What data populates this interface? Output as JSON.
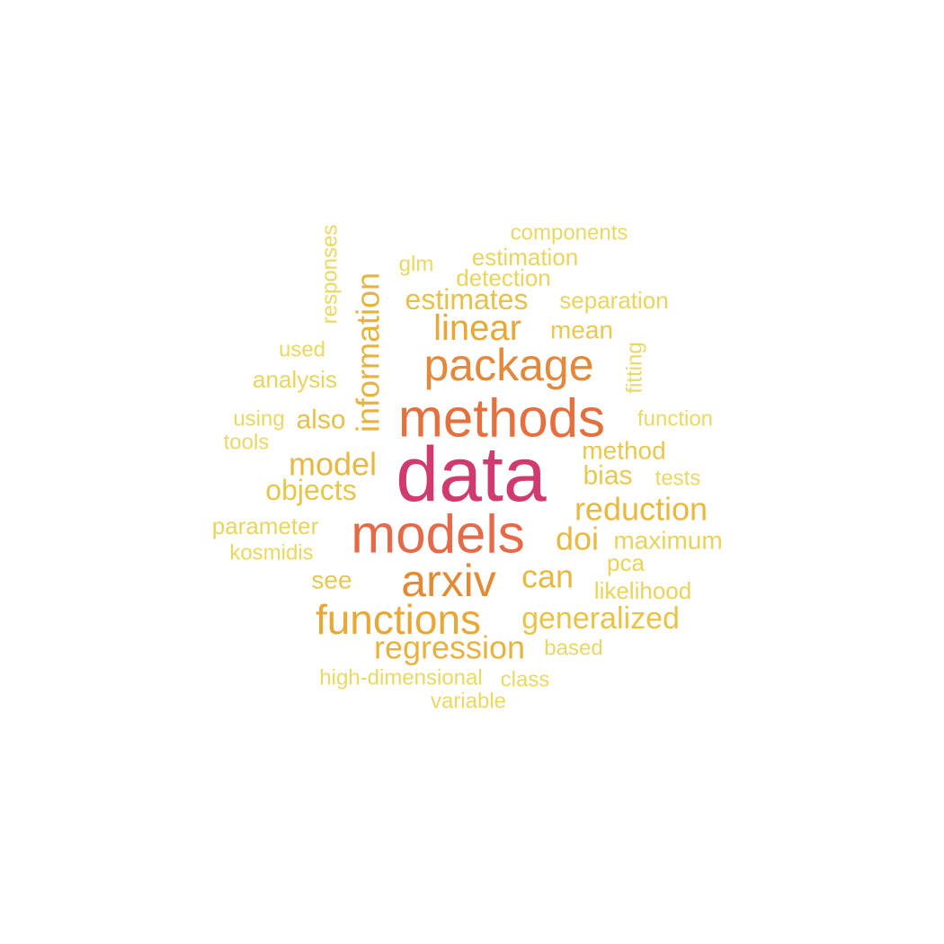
{
  "word_cloud": {
    "words": [
      {
        "text": "data",
        "color": "#d03a6e"
      },
      {
        "text": "methods",
        "color": "#e5703e"
      },
      {
        "text": "models",
        "color": "#e56a4a"
      },
      {
        "text": "package",
        "color": "#e5883a"
      },
      {
        "text": "arxiv",
        "color": "#e58a34"
      },
      {
        "text": "functions",
        "color": "#e8a736"
      },
      {
        "text": "linear",
        "color": "#e8a736"
      },
      {
        "text": "information",
        "color": "#e8b23e"
      },
      {
        "text": "regression",
        "color": "#e8b23e"
      },
      {
        "text": "can",
        "color": "#e8b840"
      },
      {
        "text": "reduction",
        "color": "#e8b840"
      },
      {
        "text": "generalized",
        "color": "#e9c348"
      },
      {
        "text": "doi",
        "color": "#e8b840"
      },
      {
        "text": "model",
        "color": "#e8b840"
      },
      {
        "text": "estimates",
        "color": "#e8c04a"
      },
      {
        "text": "objects",
        "color": "#e8c64c"
      },
      {
        "text": "also",
        "color": "#e8c04a"
      },
      {
        "text": "bias",
        "color": "#e9c750"
      },
      {
        "text": "method",
        "color": "#e9c750"
      },
      {
        "text": "see",
        "color": "#e9c750"
      },
      {
        "text": "mean",
        "color": "#e9c750"
      },
      {
        "text": "maximum",
        "color": "#ead25c"
      },
      {
        "text": "likelihood",
        "color": "#ead25c"
      },
      {
        "text": "pca",
        "color": "#ead25c"
      },
      {
        "text": "separation",
        "color": "#ead45e"
      },
      {
        "text": "analysis",
        "color": "#ead45e"
      },
      {
        "text": "estimation",
        "color": "#ead45e"
      },
      {
        "text": "detection",
        "color": "#ead45e"
      },
      {
        "text": "parameter",
        "color": "#ead45e"
      },
      {
        "text": "components",
        "color": "#ebd862"
      },
      {
        "text": "glm",
        "color": "#ebd862"
      },
      {
        "text": "responses",
        "color": "#ebd862"
      },
      {
        "text": "fitting",
        "color": "#ebd862"
      },
      {
        "text": "function",
        "color": "#ebd862"
      },
      {
        "text": "used",
        "color": "#ebd862"
      },
      {
        "text": "using",
        "color": "#ebd862"
      },
      {
        "text": "tools",
        "color": "#ebd862"
      },
      {
        "text": "tests",
        "color": "#ebd862"
      },
      {
        "text": "kosmidis",
        "color": "#ebd862"
      },
      {
        "text": "based",
        "color": "#ebd862"
      },
      {
        "text": "high-dimensional",
        "color": "#ebd862"
      },
      {
        "text": "class",
        "color": "#ebd862"
      },
      {
        "text": "variable",
        "color": "#ebd862"
      }
    ]
  }
}
